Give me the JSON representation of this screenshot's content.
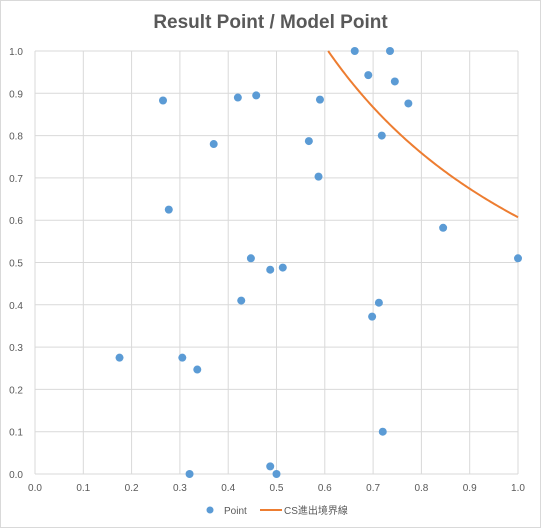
{
  "chart_data": {
    "type": "scatter",
    "title": "Result Point / Model Point",
    "xlabel": "",
    "ylabel": "",
    "xlim": [
      0,
      1
    ],
    "ylim": [
      0,
      1
    ],
    "x_ticks": [
      "0.0",
      "0.1",
      "0.2",
      "0.3",
      "0.4",
      "0.5",
      "0.6",
      "0.7",
      "0.8",
      "0.9",
      "1.0"
    ],
    "y_ticks": [
      "0.0",
      "0.1",
      "0.2",
      "0.3",
      "0.4",
      "0.5",
      "0.6",
      "0.7",
      "0.8",
      "0.9",
      "1.0"
    ],
    "grid": true,
    "legend_position": "bottom",
    "series": [
      {
        "name": "Point",
        "kind": "scatter",
        "color": "#5b9bd5",
        "points": [
          [
            0.175,
            0.275
          ],
          [
            0.265,
            0.883
          ],
          [
            0.277,
            0.625
          ],
          [
            0.305,
            0.275
          ],
          [
            0.32,
            0.0
          ],
          [
            0.336,
            0.247
          ],
          [
            0.37,
            0.78
          ],
          [
            0.42,
            0.89
          ],
          [
            0.427,
            0.41
          ],
          [
            0.447,
            0.51
          ],
          [
            0.458,
            0.895
          ],
          [
            0.487,
            0.483
          ],
          [
            0.487,
            0.018
          ],
          [
            0.5,
            0.0
          ],
          [
            0.513,
            0.488
          ],
          [
            0.567,
            0.787
          ],
          [
            0.587,
            0.703
          ],
          [
            0.59,
            0.885
          ],
          [
            0.662,
            1.0
          ],
          [
            0.69,
            0.943
          ],
          [
            0.698,
            0.372
          ],
          [
            0.712,
            0.405
          ],
          [
            0.718,
            0.8
          ],
          [
            0.72,
            0.1
          ],
          [
            0.735,
            1.0
          ],
          [
            0.745,
            0.928
          ],
          [
            0.773,
            0.876
          ],
          [
            0.845,
            0.582
          ],
          [
            1.0,
            0.51
          ]
        ]
      },
      {
        "name": "CS進出境界線",
        "kind": "line",
        "color": "#ed7d31",
        "k": 0.607
      }
    ]
  }
}
